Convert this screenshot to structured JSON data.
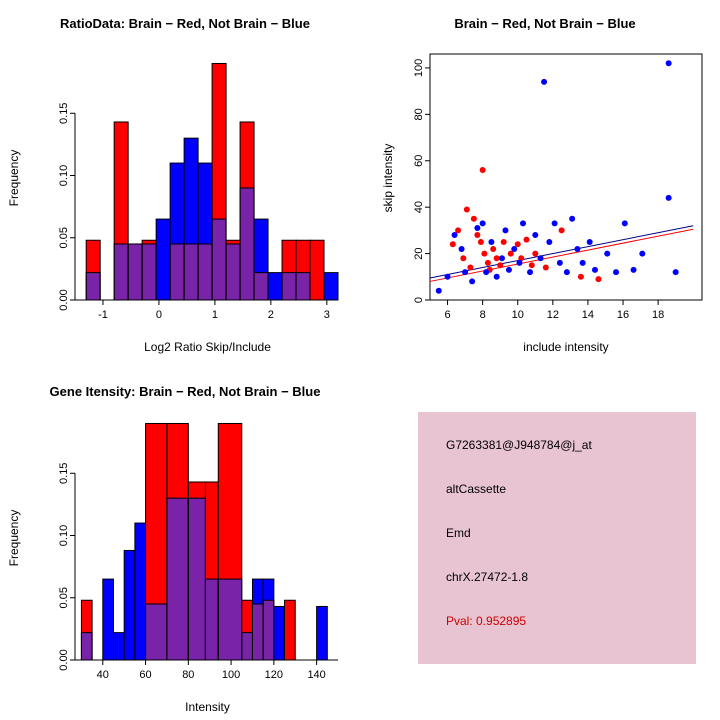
{
  "colors": {
    "red": "#FF0000",
    "blue": "#0000FF",
    "overlap": "#7823A8",
    "axis": "#000000",
    "fit_line_red": "#FF0000",
    "fit_line_blue": "#00008B"
  },
  "info_box": {
    "bg_color": "#E8C4D2",
    "lines": [
      {
        "text": "G7263381@J948784@j_at",
        "color": "#000000"
      },
      {
        "text": "altCassette",
        "color": "#000000"
      },
      {
        "text": "Emd",
        "color": "#000000"
      },
      {
        "text": "chrX.27472-1.8",
        "color": "#000000"
      },
      {
        "text": "Pval: 0.952895",
        "color": "#CC0000"
      }
    ]
  },
  "chart_data": [
    {
      "id": "ratio_hist",
      "type": "bar",
      "title": "RatioData: Brain − Red, Not Brain − Blue",
      "xlabel": "Log2 Ratio Skip/Include",
      "ylabel": "Frequency",
      "xlim": [
        -1.5,
        3.2
      ],
      "ylim": [
        0,
        0.196
      ],
      "xticks": [
        -1,
        0,
        1,
        2,
        3
      ],
      "yticks": [
        0,
        0.05,
        0.1,
        0.15
      ],
      "ytick_labels": [
        "0.00",
        "0.05",
        "0.10",
        "0.15"
      ],
      "bin_width": 0.25,
      "series": [
        {
          "name": "Brain",
          "color_key": "red"
        },
        {
          "name": "Not Brain",
          "color_key": "blue"
        }
      ],
      "bars": [
        {
          "x": -1.3,
          "w": 0.25,
          "red": 0.048,
          "blue": 0.022
        },
        {
          "x": -1.05,
          "w": 0.25,
          "red": 0.0,
          "blue": 0.0
        },
        {
          "x": -0.8,
          "w": 0.25,
          "red": 0.143,
          "blue": 0.045
        },
        {
          "x": -0.55,
          "w": 0.25,
          "red": 0.045,
          "blue": 0.045
        },
        {
          "x": -0.3,
          "w": 0.25,
          "red": 0.048,
          "blue": 0.045
        },
        {
          "x": -0.05,
          "w": 0.25,
          "red": 0.0,
          "blue": 0.065
        },
        {
          "x": 0.2,
          "w": 0.25,
          "red": 0.045,
          "blue": 0.11
        },
        {
          "x": 0.45,
          "w": 0.25,
          "red": 0.045,
          "blue": 0.13
        },
        {
          "x": 0.7,
          "w": 0.25,
          "red": 0.045,
          "blue": 0.11
        },
        {
          "x": 0.95,
          "w": 0.25,
          "red": 0.19,
          "blue": 0.065
        },
        {
          "x": 1.2,
          "w": 0.25,
          "red": 0.048,
          "blue": 0.045
        },
        {
          "x": 1.45,
          "w": 0.25,
          "red": 0.143,
          "blue": 0.09
        },
        {
          "x": 1.7,
          "w": 0.25,
          "red": 0.022,
          "blue": 0.065
        },
        {
          "x": 1.95,
          "w": 0.25,
          "red": 0.0,
          "blue": 0.022
        },
        {
          "x": 2.2,
          "w": 0.25,
          "red": 0.048,
          "blue": 0.022
        },
        {
          "x": 2.45,
          "w": 0.25,
          "red": 0.048,
          "blue": 0.022
        },
        {
          "x": 2.7,
          "w": 0.25,
          "red": 0.048,
          "blue": 0.0
        },
        {
          "x": 2.95,
          "w": 0.25,
          "red": 0.0,
          "blue": 0.022
        }
      ]
    },
    {
      "id": "scatter",
      "type": "scatter",
      "title": "Brain − Red, Not Brain − Blue",
      "xlabel": "include intensity",
      "ylabel": "skip intensity",
      "xlim": [
        5,
        20.5
      ],
      "ylim": [
        0,
        106
      ],
      "xticks": [
        6,
        8,
        10,
        12,
        14,
        16,
        18
      ],
      "yticks": [
        0,
        20,
        40,
        60,
        80,
        100
      ],
      "series": [
        {
          "name": "Brain",
          "color_key": "red",
          "points": [
            [
              6.3,
              24
            ],
            [
              6.6,
              30
            ],
            [
              6.9,
              18
            ],
            [
              7.1,
              39
            ],
            [
              7.3,
              14
            ],
            [
              7.5,
              35
            ],
            [
              7.7,
              28
            ],
            [
              7.9,
              25
            ],
            [
              8.0,
              56
            ],
            [
              8.1,
              20
            ],
            [
              8.3,
              16
            ],
            [
              8.4,
              13
            ],
            [
              8.6,
              22
            ],
            [
              8.8,
              18
            ],
            [
              9.0,
              15
            ],
            [
              9.2,
              25
            ],
            [
              9.6,
              20
            ],
            [
              10.0,
              24
            ],
            [
              10.2,
              18
            ],
            [
              10.5,
              26
            ],
            [
              10.8,
              15
            ],
            [
              11.0,
              20
            ],
            [
              11.6,
              14
            ],
            [
              12.5,
              30
            ],
            [
              13.6,
              10
            ],
            [
              14.6,
              9
            ]
          ]
        },
        {
          "name": "Not Brain",
          "color_key": "blue",
          "points": [
            [
              5.5,
              4
            ],
            [
              6.0,
              10
            ],
            [
              6.4,
              28
            ],
            [
              6.8,
              22
            ],
            [
              7.0,
              12
            ],
            [
              7.4,
              8
            ],
            [
              7.7,
              31
            ],
            [
              8.0,
              33
            ],
            [
              8.2,
              12
            ],
            [
              8.5,
              25
            ],
            [
              8.8,
              10
            ],
            [
              9.1,
              18
            ],
            [
              9.3,
              30
            ],
            [
              9.5,
              13
            ],
            [
              9.8,
              22
            ],
            [
              10.1,
              16
            ],
            [
              10.3,
              33
            ],
            [
              10.7,
              12
            ],
            [
              11.0,
              28
            ],
            [
              11.3,
              18
            ],
            [
              11.5,
              94
            ],
            [
              11.8,
              25
            ],
            [
              12.1,
              33
            ],
            [
              12.4,
              16
            ],
            [
              12.8,
              12
            ],
            [
              13.1,
              35
            ],
            [
              13.4,
              22
            ],
            [
              13.7,
              16
            ],
            [
              14.1,
              25
            ],
            [
              14.4,
              13
            ],
            [
              15.1,
              20
            ],
            [
              15.6,
              12
            ],
            [
              16.1,
              33
            ],
            [
              16.6,
              13
            ],
            [
              17.1,
              20
            ],
            [
              18.6,
              102
            ],
            [
              18.6,
              44
            ],
            [
              19.0,
              12
            ]
          ]
        }
      ],
      "fit_lines": [
        {
          "color_key": "fit_line_red",
          "from": [
            5,
            8
          ],
          "to": [
            20,
            30.5
          ]
        },
        {
          "color_key": "fit_line_blue",
          "from": [
            5,
            9.5
          ],
          "to": [
            20,
            32
          ]
        }
      ]
    },
    {
      "id": "gene_hist",
      "type": "bar",
      "title": "Gene Itensity: Brain − Red, Not Brain − Blue",
      "xlabel": "Intensity",
      "ylabel": "Frequency",
      "xlim": [
        27,
        150
      ],
      "ylim": [
        0,
        0.196
      ],
      "xticks": [
        40,
        60,
        80,
        100,
        120,
        140
      ],
      "yticks": [
        0,
        0.05,
        0.1,
        0.15
      ],
      "ytick_labels": [
        "0.00",
        "0.05",
        "0.10",
        "0.15"
      ],
      "bin_width": 5,
      "series": [
        {
          "name": "Brain",
          "color_key": "red"
        },
        {
          "name": "Not Brain",
          "color_key": "blue"
        }
      ],
      "bars": [
        {
          "x": 30,
          "w": 5,
          "red": 0.048,
          "blue": 0.022
        },
        {
          "x": 40,
          "w": 5,
          "red": 0.0,
          "blue": 0.065
        },
        {
          "x": 45,
          "w": 5,
          "red": 0.0,
          "blue": 0.022
        },
        {
          "x": 50,
          "w": 5,
          "red": 0.0,
          "blue": 0.088
        },
        {
          "x": 55,
          "w": 5,
          "red": 0.0,
          "blue": 0.11
        },
        {
          "x": 60,
          "w": 10,
          "red": 0.19,
          "blue": 0.045
        },
        {
          "x": 70,
          "w": 10,
          "red": 0.19,
          "blue": 0.13
        },
        {
          "x": 80,
          "w": 8,
          "red": 0.143,
          "blue": 0.13
        },
        {
          "x": 88,
          "w": 6,
          "red": 0.143,
          "blue": 0.065
        },
        {
          "x": 94,
          "w": 11,
          "red": 0.19,
          "blue": 0.065
        },
        {
          "x": 105,
          "w": 5,
          "red": 0.048,
          "blue": 0.022
        },
        {
          "x": 110,
          "w": 5,
          "red": 0.045,
          "blue": 0.065
        },
        {
          "x": 115,
          "w": 5,
          "red": 0.048,
          "blue": 0.065
        },
        {
          "x": 120,
          "w": 5,
          "red": 0.0,
          "blue": 0.043
        },
        {
          "x": 125,
          "w": 5,
          "red": 0.048,
          "blue": 0.0
        },
        {
          "x": 140,
          "w": 5,
          "red": 0.0,
          "blue": 0.043
        }
      ]
    }
  ]
}
